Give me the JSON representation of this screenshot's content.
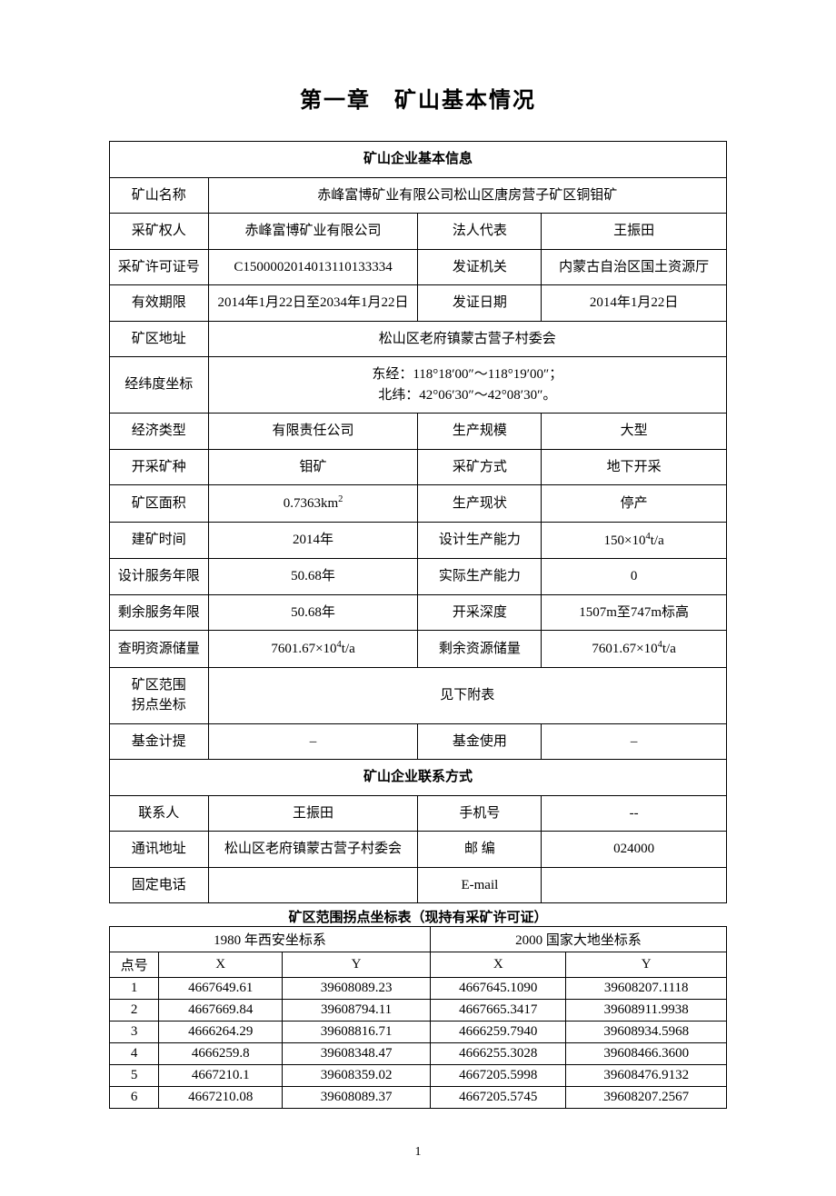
{
  "chapter_title": "第一章　矿山基本情况",
  "section1_header": "矿山企业基本信息",
  "rows": {
    "mine_name_label": "矿山名称",
    "mine_name": "赤峰富博矿业有限公司松山区唐房营子矿区铜钼矿",
    "rights_holder_label": "采矿权人",
    "rights_holder": "赤峰富博矿业有限公司",
    "legal_rep_label": "法人代表",
    "legal_rep": "王振田",
    "license_no_label": "采矿许可证号",
    "license_no": "C1500002014013110133334",
    "issuer_label": "发证机关",
    "issuer": "内蒙古自治区国土资源厅",
    "valid_period_label": "有效期限",
    "valid_period": "2014年1月22日至2034年1月22日",
    "issue_date_label": "发证日期",
    "issue_date": "2014年1月22日",
    "address_label": "矿区地址",
    "address": "松山区老府镇蒙古营子村委会",
    "coords_label": "经纬度坐标",
    "coords_line1": "东经：118°18′00″～118°19′00″；",
    "coords_line2": "北纬：42°06′30″～42°08′30″。",
    "econ_type_label": "经济类型",
    "econ_type": "有限责任公司",
    "prod_scale_label": "生产规模",
    "prod_scale": "大型",
    "mineral_label": "开采矿种",
    "mineral": "钼矿",
    "method_label": "采矿方式",
    "method": "地下开采",
    "area_label": "矿区面积",
    "area_val": "0.7363km",
    "area_sup": "2",
    "prod_status_label": "生产现状",
    "prod_status": "停产",
    "build_time_label": "建矿时间",
    "build_time": "2014年",
    "design_cap_label": "设计生产能力",
    "design_cap_pre": "150×10",
    "design_cap_sup": "4",
    "design_cap_post": "t/a",
    "design_life_label": "设计服务年限",
    "design_life": "50.68年",
    "actual_cap_label": "实际生产能力",
    "actual_cap": "0",
    "remain_life_label": "剩余服务年限",
    "remain_life": "50.68年",
    "depth_label": "开采深度",
    "depth": "1507m至747m标高",
    "proven_res_label": "查明资源储量",
    "proven_res_pre": "7601.67×10",
    "proven_res_sup": "4",
    "proven_res_post": "t/a",
    "remain_res_label": "剩余资源储量",
    "remain_res_pre": "7601.67×10",
    "remain_res_sup": "4",
    "remain_res_post": "t/a",
    "corner_label1": "矿区范围",
    "corner_label2": "拐点坐标",
    "corner_val": "见下附表",
    "fund_accrual_label": "基金计提",
    "fund_accrual": "–",
    "fund_use_label": "基金使用",
    "fund_use": "–"
  },
  "section2_header": "矿山企业联系方式",
  "contact": {
    "contact_label": "联系人",
    "contact": "王振田",
    "mobile_label": "手机号",
    "mobile": "--",
    "mail_addr_label": "通讯地址",
    "mail_addr": "松山区老府镇蒙古营子村委会",
    "postcode_label": "邮  编",
    "postcode": "024000",
    "phone_label": "固定电话",
    "phone": "",
    "email_label": "E-mail",
    "email": ""
  },
  "coord_table_title": "矿区范围拐点坐标表（现持有采矿许可证）",
  "coord_headers": {
    "sys1980": "1980 年西安坐标系",
    "sys2000": "2000 国家大地坐标系",
    "pt": "点号",
    "x": "X",
    "y": "Y"
  },
  "coord_rows": [
    {
      "n": "1",
      "x1": "4667649.61",
      "y1": "39608089.23",
      "x2": "4667645.1090",
      "y2": "39608207.1118"
    },
    {
      "n": "2",
      "x1": "4667669.84",
      "y1": "39608794.11",
      "x2": "4667665.3417",
      "y2": "39608911.9938"
    },
    {
      "n": "3",
      "x1": "4666264.29",
      "y1": "39608816.71",
      "x2": "4666259.7940",
      "y2": "39608934.5968"
    },
    {
      "n": "4",
      "x1": "4666259.8",
      "y1": "39608348.47",
      "x2": "4666255.3028",
      "y2": "39608466.3600"
    },
    {
      "n": "5",
      "x1": "4667210.1",
      "y1": "39608359.02",
      "x2": "4667205.5998",
      "y2": "39608476.9132"
    },
    {
      "n": "6",
      "x1": "4667210.08",
      "y1": "39608089.37",
      "x2": "4667205.5745",
      "y2": "39608207.2567"
    }
  ],
  "page_number": "1"
}
